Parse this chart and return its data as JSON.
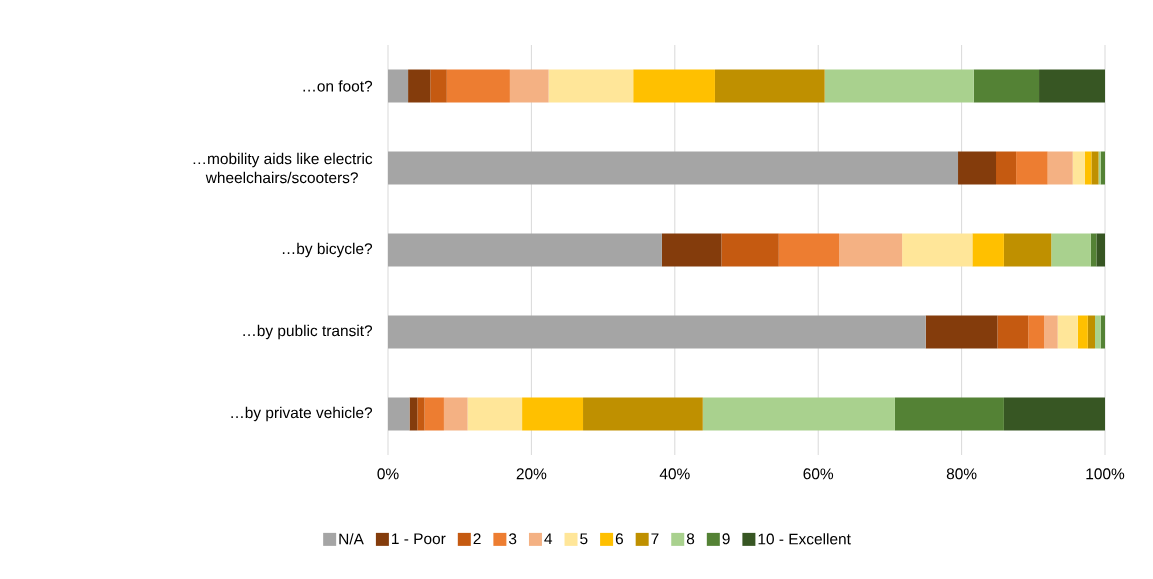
{
  "chart_data": {
    "type": "bar",
    "orientation": "horizontal",
    "stacked": true,
    "categories": [
      "…on foot?",
      "…mobility aids like electric wheelchairs/scooters?",
      "…by bicycle?",
      "…by public transit?",
      "…by private vehicle?"
    ],
    "series": [
      {
        "name": "N/A",
        "color": "#a5a5a5",
        "values": [
          2.8,
          79.5,
          38.2,
          75.0,
          3.0
        ]
      },
      {
        "name": "1 - Poor",
        "color": "#843c0c",
        "values": [
          3.1,
          5.3,
          8.3,
          10.0,
          1.1
        ]
      },
      {
        "name": "2",
        "color": "#c55a11",
        "values": [
          2.3,
          2.8,
          8.0,
          4.3,
          1.0
        ]
      },
      {
        "name": "3",
        "color": "#ed7d31",
        "values": [
          8.8,
          4.4,
          8.4,
          2.2,
          2.7
        ]
      },
      {
        "name": "4",
        "color": "#f4b183",
        "values": [
          5.4,
          3.5,
          8.8,
          1.9,
          3.3
        ]
      },
      {
        "name": "5",
        "color": "#ffe699",
        "values": [
          11.8,
          1.7,
          9.8,
          2.8,
          7.6
        ]
      },
      {
        "name": "6",
        "color": "#ffc000",
        "values": [
          11.4,
          0.9,
          4.4,
          1.4,
          8.5
        ]
      },
      {
        "name": "7",
        "color": "#bf9000",
        "values": [
          15.3,
          1.0,
          6.6,
          1.0,
          16.7
        ]
      },
      {
        "name": "8",
        "color": "#a9d18e",
        "values": [
          20.8,
          0.3,
          5.5,
          0.8,
          26.8
        ]
      },
      {
        "name": "9",
        "color": "#548235",
        "values": [
          9.1,
          0.6,
          0.8,
          0.6,
          15.2
        ]
      },
      {
        "name": "10 - Excellent",
        "color": "#375623",
        "values": [
          9.2,
          0.0,
          1.2,
          0.0,
          14.1
        ]
      }
    ],
    "xlim": [
      0,
      100
    ],
    "xticks": [
      {
        "value": 0,
        "label": "0%"
      },
      {
        "value": 20,
        "label": "20%"
      },
      {
        "value": 40,
        "label": "40%"
      },
      {
        "value": 60,
        "label": "60%"
      },
      {
        "value": 80,
        "label": "80%"
      },
      {
        "value": 100,
        "label": "100%"
      }
    ],
    "grid": "x",
    "legend": "bottom"
  }
}
